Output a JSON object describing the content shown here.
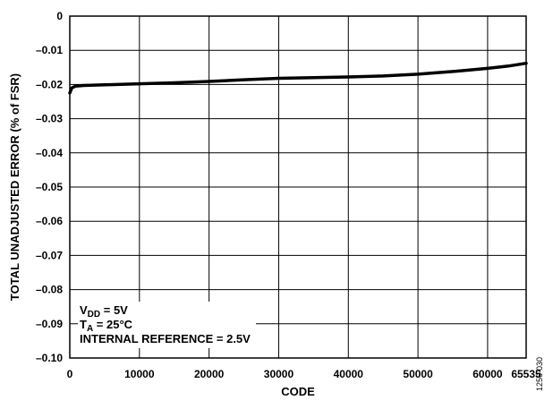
{
  "chart_data": {
    "type": "line",
    "xlabel": "CODE",
    "ylabel": "TOTAL UNADJUSTED ERROR (% of FSR)",
    "xlim": [
      0,
      65535
    ],
    "ylim": [
      -0.1,
      0
    ],
    "x_ticks": [
      0,
      10000,
      20000,
      30000,
      40000,
      50000,
      60000,
      65535
    ],
    "x_tick_labels": [
      "0",
      "10000",
      "20000",
      "30000",
      "40000",
      "50000",
      "60000",
      "65535"
    ],
    "y_ticks": [
      0,
      -0.01,
      -0.02,
      -0.03,
      -0.04,
      -0.05,
      -0.06,
      -0.07,
      -0.08,
      -0.09,
      -0.1
    ],
    "y_tick_labels": [
      "0",
      "–0.01",
      "–0.02",
      "–0.03",
      "–0.04",
      "–0.05",
      "–0.06",
      "–0.07",
      "–0.08",
      "–0.09",
      "–0.10"
    ],
    "grid": true,
    "series": [
      {
        "x": [
          0,
          300,
          800,
          2000,
          5000,
          10000,
          15000,
          20000,
          25000,
          30000,
          35000,
          40000,
          45000,
          50000,
          55000,
          60000,
          63000,
          65535
        ],
        "y": [
          -0.0225,
          -0.021,
          -0.0205,
          -0.0203,
          -0.0201,
          -0.0198,
          -0.0195,
          -0.0191,
          -0.0186,
          -0.0182,
          -0.018,
          -0.0178,
          -0.0175,
          -0.017,
          -0.0162,
          -0.0153,
          -0.0146,
          -0.0138
        ]
      }
    ],
    "annotations": {
      "vdd_prefix": "V",
      "vdd_sub": "DD",
      "vdd_rest": " = 5V",
      "ta_prefix": "T",
      "ta_sub": "A",
      "ta_rest": " = 25°C",
      "reference": "INTERNAL REFERENCE = 2.5V"
    },
    "figure_id": "1256-030"
  }
}
